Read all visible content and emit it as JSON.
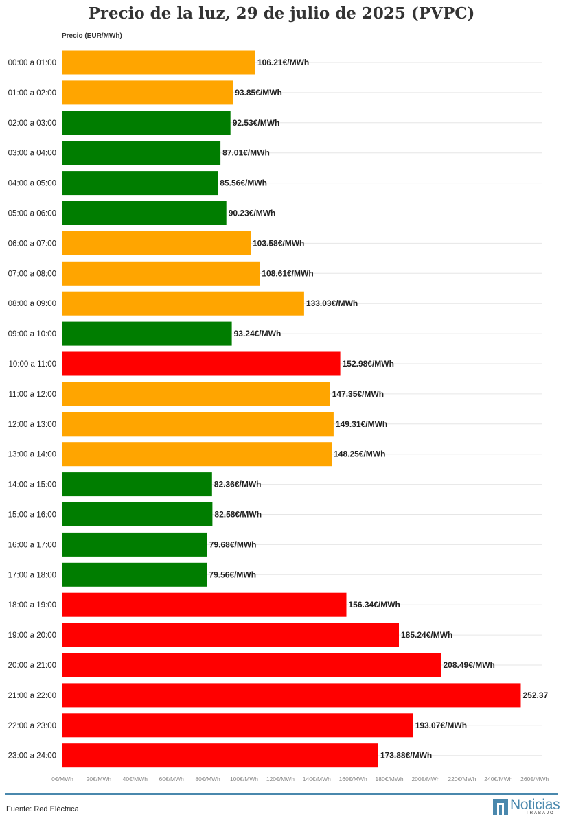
{
  "title": "Precio de la luz, 29 de julio de 2025 (PVPC)",
  "axis_caption": "Precio (EUR/MWh)",
  "footer": {
    "source": "Fuente: Red Eléctrica"
  },
  "logo": {
    "name": "Noticias",
    "sub": "TRABAJO"
  },
  "colors": {
    "green": "#007d00",
    "orange": "#ffa500",
    "red": "#ff0000",
    "grid": "#e6e6e6",
    "footer_line": "#4a88ad"
  },
  "chart_data": {
    "type": "bar",
    "orientation": "horizontal",
    "xlim": [
      0,
      260
    ],
    "x_ticks": [
      "0€/MWh",
      "20€/MWh",
      "40€/MWh",
      "60€/MWh",
      "80€/MWh",
      "100€/MWh",
      "120€/MWh",
      "140€/MWh",
      "160€/MWh",
      "180€/MWh",
      "200€/MWh",
      "220€/MWh",
      "240€/MWh",
      "260€/MWh"
    ],
    "categories": [
      "00:00 a 01:00",
      "01:00 a 02:00",
      "02:00 a 03:00",
      "03:00 a 04:00",
      "04:00 a 05:00",
      "05:00 a 06:00",
      "06:00 a 07:00",
      "07:00 a 08:00",
      "08:00 a 09:00",
      "09:00 a 10:00",
      "10:00 a 11:00",
      "11:00 a 12:00",
      "12:00 a 13:00",
      "13:00 a 14:00",
      "14:00 a 15:00",
      "15:00 a 16:00",
      "16:00 a 17:00",
      "17:00 a 18:00",
      "18:00 a 19:00",
      "19:00 a 20:00",
      "20:00 a 21:00",
      "21:00 a 22:00",
      "22:00 a 23:00",
      "23:00 a 24:00"
    ],
    "values": [
      106.21,
      93.85,
      92.53,
      87.01,
      85.56,
      90.23,
      103.58,
      108.61,
      133.03,
      93.24,
      152.98,
      147.35,
      149.31,
      148.25,
      82.36,
      82.58,
      79.68,
      79.56,
      156.34,
      185.24,
      208.49,
      252.37,
      193.07,
      173.88
    ],
    "labels": [
      "106.21€/MWh",
      "93.85€/MWh",
      "92.53€/MWh",
      "87.01€/MWh",
      "85.56€/MWh",
      "90.23€/MWh",
      "103.58€/MWh",
      "108.61€/MWh",
      "133.03€/MWh",
      "93.24€/MWh",
      "152.98€/MWh",
      "147.35€/MWh",
      "149.31€/MWh",
      "148.25€/MWh",
      "82.36€/MWh",
      "82.58€/MWh",
      "79.68€/MWh",
      "79.56€/MWh",
      "156.34€/MWh",
      "185.24€/MWh",
      "208.49€/MWh",
      "252.37",
      "193.07€/MWh",
      "173.88€/MWh"
    ],
    "bar_colors": [
      "orange",
      "orange",
      "green",
      "green",
      "green",
      "green",
      "orange",
      "orange",
      "orange",
      "green",
      "red",
      "orange",
      "orange",
      "orange",
      "green",
      "green",
      "green",
      "green",
      "red",
      "red",
      "red",
      "red",
      "red",
      "red"
    ],
    "grid": true
  }
}
